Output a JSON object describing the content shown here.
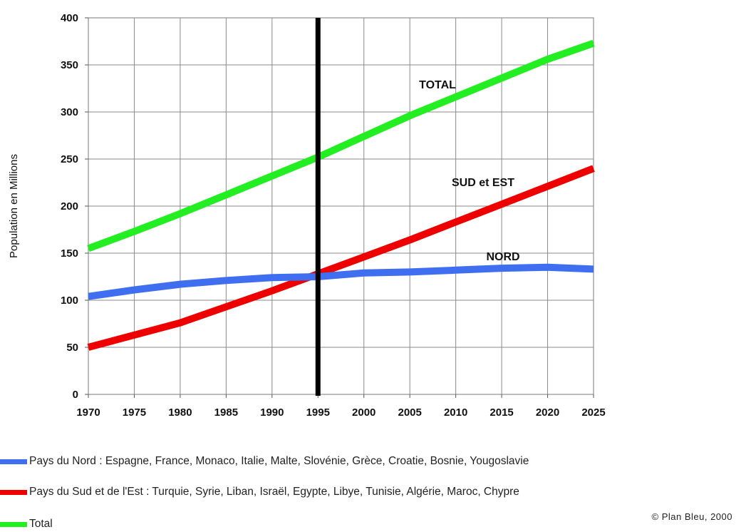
{
  "chart_data": {
    "type": "line",
    "title": "",
    "xlabel": "",
    "ylabel": "Population en Millions",
    "xlim": [
      1970,
      2025
    ],
    "ylim": [
      0,
      400
    ],
    "x_ticks": [
      1970,
      1975,
      1980,
      1985,
      1990,
      1995,
      2000,
      2005,
      2010,
      2015,
      2020,
      2025
    ],
    "y_ticks": [
      0,
      50,
      100,
      150,
      200,
      250,
      300,
      350,
      400
    ],
    "grid": true,
    "vertical_marker": 1995,
    "x": [
      1970,
      1975,
      1980,
      1985,
      1990,
      1995,
      2000,
      2005,
      2010,
      2015,
      2020,
      2025
    ],
    "series": [
      {
        "name": "TOTAL",
        "color": "#22ee22",
        "values": [
          155,
          173,
          192,
          212,
          232,
          252,
          274,
          296,
          316,
          336,
          356,
          373
        ]
      },
      {
        "name": "SUD et EST",
        "color": "#ee0000",
        "values": [
          50,
          63,
          76,
          93,
          110,
          128,
          146,
          164,
          183,
          202,
          221,
          240
        ]
      },
      {
        "name": "NORD",
        "color": "#3f6ff0",
        "values": [
          104,
          111,
          117,
          121,
          124,
          125,
          129,
          130,
          132,
          134,
          135,
          133
        ]
      }
    ],
    "legend": [
      {
        "color": "#3f6ff0",
        "text": "Pays du Nord : Espagne, France, Monaco, Italie, Malte, Slovénie, Grèce, Croatie, Bosnie, Yougoslavie"
      },
      {
        "color": "#ee0000",
        "text": "Pays du Sud et de l'Est : Turquie, Syrie, Liban, Israël, Egypte, Libye, Tunisie, Algérie, Maroc, Chypre"
      },
      {
        "color": "#22ee22",
        "text": "Total"
      }
    ],
    "legend_placement": "bottom",
    "source": "© Plan Bleu, 2000"
  }
}
